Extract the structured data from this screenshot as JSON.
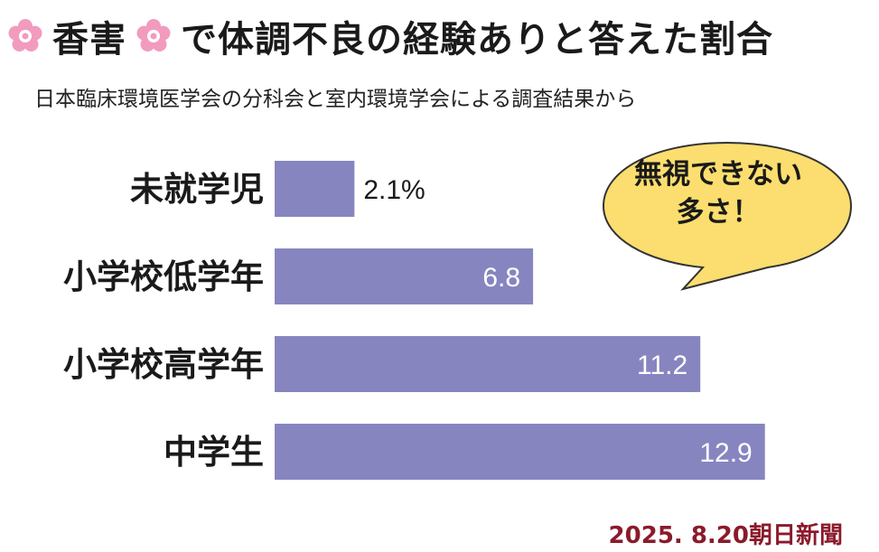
{
  "header": {
    "title_main": "香害",
    "title_rest": "で体調不良の経験ありと答えた割合",
    "subtitle": "日本臨床環境医学会の分科会と室内環境学会による調査結果から"
  },
  "callout": {
    "text": "無視できない\n多さ！"
  },
  "source": "2025. 8.20朝日新聞",
  "colors": {
    "bar": "#8785c0",
    "source": "#8b1a2b",
    "bubble": "#fbde6f",
    "flower": "#f29bbf"
  },
  "icons": [
    "flower-icon",
    "flower-icon"
  ],
  "chart_data": {
    "type": "bar",
    "orientation": "horizontal",
    "categories": [
      "未就学児",
      "小学校低学年",
      "小学校高学年",
      "中学生"
    ],
    "values": [
      2.1,
      6.8,
      11.2,
      12.9
    ],
    "data_labels": [
      "2.1%",
      "6.8",
      "11.2",
      "12.9"
    ],
    "unit": "%",
    "xlim": [
      0,
      14.0
    ],
    "grid": false,
    "legend": "none"
  }
}
